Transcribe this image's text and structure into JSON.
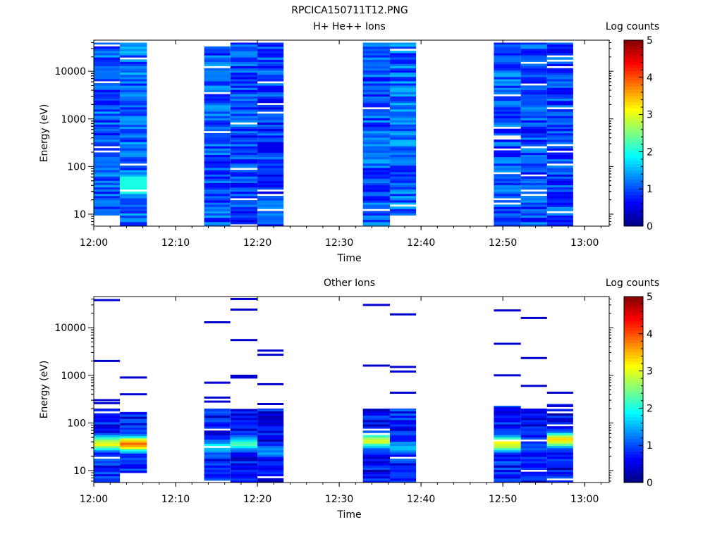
{
  "page_title": "RPCICA150711T12.PNG",
  "chart_data": [
    {
      "type": "heatmap",
      "title": "H+ He++ Ions",
      "xlabel": "Time",
      "ylabel": "Energy (eV)",
      "y_scale": "log",
      "xlim": [
        "12:00",
        "13:03"
      ],
      "ylim": [
        5.6,
        45000
      ],
      "x_ticks": [
        "12:00",
        "12:10",
        "12:20",
        "12:30",
        "12:40",
        "12:50",
        "13:00"
      ],
      "y_ticks": [
        "10",
        "100",
        "1000",
        "10000"
      ],
      "colorbar": {
        "label": "Log counts",
        "range": [
          0,
          5
        ],
        "ticks": [
          "0",
          "1",
          "2",
          "3",
          "4",
          "5"
        ]
      },
      "colormap": [
        "#00007f",
        "#0000ff",
        "#007fff",
        "#00ffff",
        "#7fff7f",
        "#ffff00",
        "#ff7f00",
        "#ff0000",
        "#7f0000"
      ],
      "time_columns": [
        {
          "start": "12:00.0",
          "end": "12:03.2",
          "e_min": 9.5,
          "e_max": 40000,
          "level": 0.9
        },
        {
          "start": "12:03.2",
          "end": "12:06.5",
          "e_min": 5.6,
          "e_max": 40000,
          "level": 1.0
        },
        {
          "start": "12:13.5",
          "end": "12:16.7",
          "e_min": 5.6,
          "e_max": 40000,
          "level": 0.9
        },
        {
          "start": "12:16.7",
          "end": "12:20.0",
          "e_min": 5.6,
          "e_max": 40000,
          "level": 0.8
        },
        {
          "start": "12:20.0",
          "end": "12:23.2",
          "e_min": 5.6,
          "e_max": 40000,
          "level": 0.8
        },
        {
          "start": "12:32.9",
          "end": "12:36.2",
          "e_min": 5.6,
          "e_max": 40000,
          "level": 0.9
        },
        {
          "start": "12:36.2",
          "end": "12:39.4",
          "e_min": 9.5,
          "e_max": 40000,
          "level": 1.0
        },
        {
          "start": "12:48.9",
          "end": "12:52.2",
          "e_min": 5.6,
          "e_max": 40000,
          "level": 0.9
        },
        {
          "start": "12:52.2",
          "end": "12:55.4",
          "e_min": 5.6,
          "e_max": 40000,
          "level": 0.8
        },
        {
          "start": "12:55.4",
          "end": "12:58.6",
          "e_min": 5.6,
          "e_max": 40000,
          "level": 0.8
        }
      ]
    },
    {
      "type": "heatmap",
      "title": "Other Ions",
      "xlabel": "Time",
      "ylabel": "Energy (eV)",
      "y_scale": "log",
      "xlim": [
        "12:00",
        "13:03"
      ],
      "ylim": [
        5.6,
        45000
      ],
      "x_ticks": [
        "12:00",
        "12:10",
        "12:20",
        "12:30",
        "12:40",
        "12:50",
        "13:00"
      ],
      "y_ticks": [
        "10",
        "100",
        "1000",
        "10000"
      ],
      "colorbar": {
        "label": "Log counts",
        "range": [
          0,
          5
        ],
        "ticks": [
          "0",
          "1",
          "2",
          "3",
          "4",
          "5"
        ]
      },
      "colormap": [
        "#00007f",
        "#0000ff",
        "#007fff",
        "#00ffff",
        "#7fff7f",
        "#ffff00",
        "#ff7f00",
        "#ff0000",
        "#7f0000"
      ],
      "time_columns": [
        {
          "start": "12:00.0",
          "end": "12:03.2",
          "e_min": 5.6,
          "e_max": 200,
          "peak_energy": 35,
          "peak_level": 3.1,
          "level": 0.6
        },
        {
          "start": "12:03.2",
          "end": "12:06.5",
          "e_min": 9.0,
          "e_max": 170,
          "peak_energy": 35,
          "peak_level": 3.8,
          "level": 0.6
        },
        {
          "start": "12:13.5",
          "end": "12:16.7",
          "e_min": 5.6,
          "e_max": 200,
          "peak_energy": 30,
          "peak_level": 1.8,
          "level": 0.6
        },
        {
          "start": "12:16.7",
          "end": "12:20.0",
          "e_min": 5.6,
          "e_max": 200,
          "peak_energy": 35,
          "peak_level": 2.2,
          "level": 0.5
        },
        {
          "start": "12:20.0",
          "end": "12:23.2",
          "e_min": 5.6,
          "e_max": 200,
          "peak_energy": 25,
          "peak_level": 1.4,
          "level": 0.5
        },
        {
          "start": "12:32.9",
          "end": "12:36.2",
          "e_min": 5.6,
          "e_max": 200,
          "peak_energy": 40,
          "peak_level": 2.8,
          "level": 0.5
        },
        {
          "start": "12:36.2",
          "end": "12:39.4",
          "e_min": 5.6,
          "e_max": 200,
          "peak_energy": 30,
          "peak_level": 1.5,
          "level": 0.6
        },
        {
          "start": "12:48.9",
          "end": "12:52.2",
          "e_min": 5.6,
          "e_max": 230,
          "peak_energy": 35,
          "peak_level": 3.0,
          "level": 0.6
        },
        {
          "start": "12:52.2",
          "end": "12:55.4",
          "e_min": 5.6,
          "e_max": 200,
          "peak_energy": 30,
          "peak_level": 1.0,
          "level": 0.5
        },
        {
          "start": "12:55.4",
          "end": "12:58.6",
          "e_min": 5.6,
          "e_max": 250,
          "peak_energy": 42,
          "peak_level": 3.3,
          "level": 0.5
        }
      ],
      "sparse_lines": [
        {
          "column": 0,
          "energies": [
            38000,
            2000,
            300,
            260
          ]
        },
        {
          "column": 1,
          "energies": [
            900,
            400
          ]
        },
        {
          "column": 2,
          "energies": [
            13000,
            700,
            340,
            280
          ]
        },
        {
          "column": 3,
          "energies": [
            40000,
            24000,
            5500,
            980,
            900
          ]
        },
        {
          "column": 4,
          "energies": [
            3300,
            2700,
            650,
            250
          ]
        },
        {
          "column": 5,
          "energies": [
            30000,
            1600
          ]
        },
        {
          "column": 6,
          "energies": [
            19000,
            1500,
            1200,
            430
          ]
        },
        {
          "column": 7,
          "energies": [
            23000,
            4600,
            1000
          ]
        },
        {
          "column": 8,
          "energies": [
            16000,
            2300,
            600
          ]
        },
        {
          "column": 9,
          "energies": [
            430
          ]
        }
      ]
    }
  ]
}
